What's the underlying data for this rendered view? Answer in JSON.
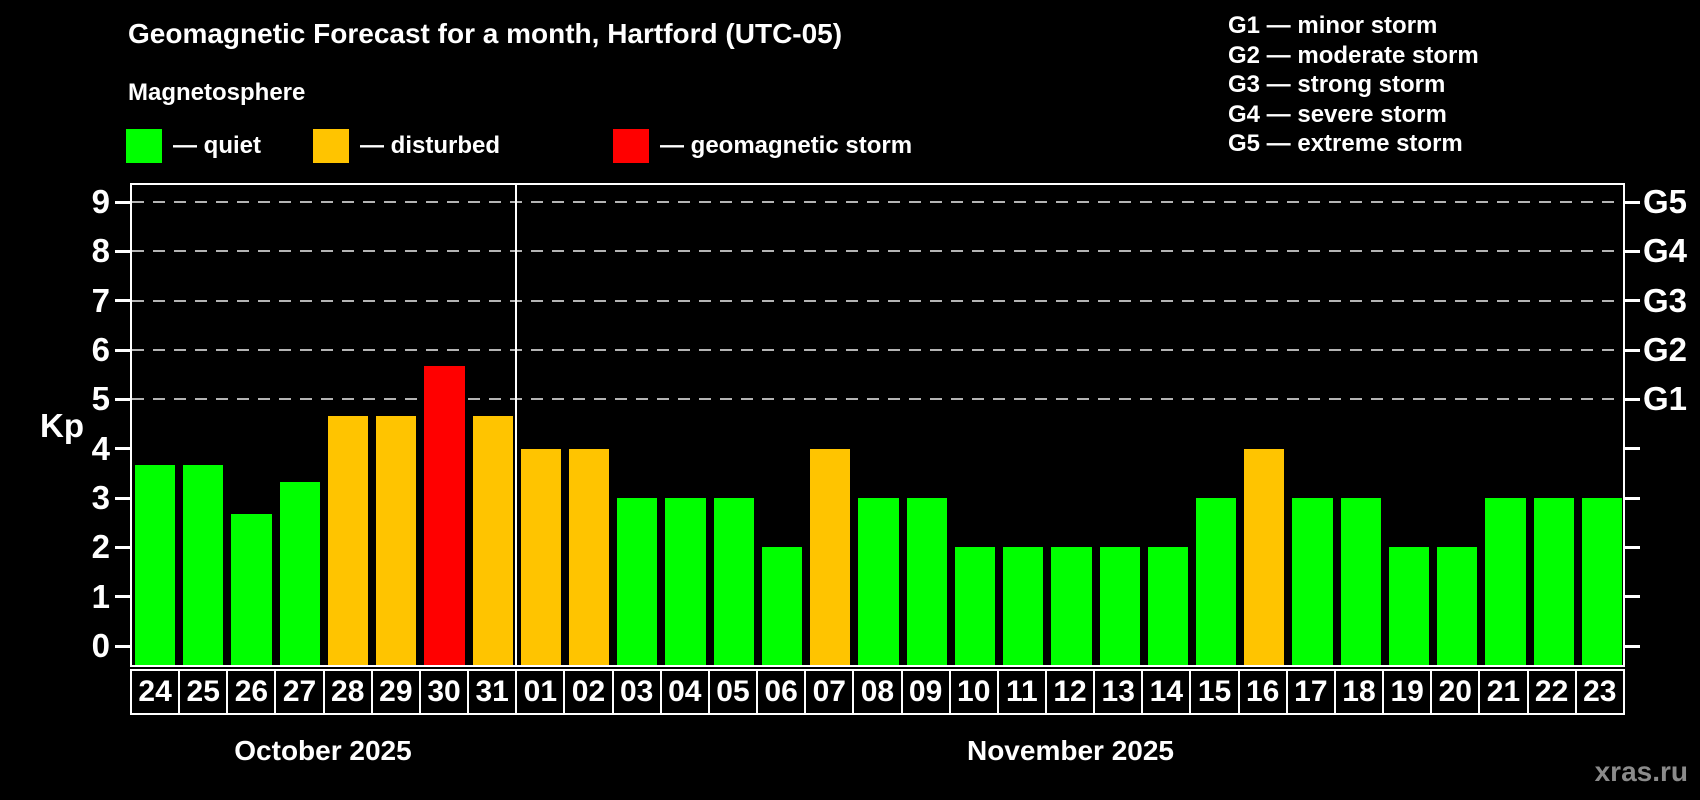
{
  "title": "Geomagnetic Forecast for a month, Hartford (UTC-05)",
  "subtitle": "Magnetosphere",
  "watermark": "xras.ru",
  "legend": {
    "items": [
      {
        "id": "quiet",
        "label": "— quiet",
        "color": "#00ff00"
      },
      {
        "id": "disturbed",
        "label": "— disturbed",
        "color": "#ffc400"
      },
      {
        "id": "storm",
        "label": "— geomagnetic storm",
        "color": "#ff0000"
      }
    ]
  },
  "storm_legend": [
    "G1 — minor storm",
    "G2 — moderate storm",
    "G3 — strong storm",
    "G4 — severe storm",
    "G5 — extreme storm"
  ],
  "chart_data": {
    "type": "bar",
    "title": "Geomagnetic Forecast for a month, Hartford (UTC-05)",
    "ylabel": "Kp",
    "ylim": [
      0,
      9
    ],
    "yticks": [
      0,
      1,
      2,
      3,
      4,
      5,
      6,
      7,
      8,
      9
    ],
    "gridlines_at_kp": [
      5,
      6,
      7,
      8,
      9
    ],
    "grid": "dashed-horizontal",
    "legend_position": "top",
    "right_axis": [
      {
        "label": "G1",
        "kp": 5
      },
      {
        "label": "G2",
        "kp": 6
      },
      {
        "label": "G3",
        "kp": 7
      },
      {
        "label": "G4",
        "kp": 8
      },
      {
        "label": "G5",
        "kp": 9
      }
    ],
    "colors": {
      "quiet": "#00ff00",
      "disturbed": "#ffc400",
      "storm": "#ff0000"
    },
    "months": [
      {
        "label": "October 2025",
        "days": [
          {
            "day": "24",
            "kp": 3.67,
            "status": "quiet"
          },
          {
            "day": "25",
            "kp": 3.67,
            "status": "quiet"
          },
          {
            "day": "26",
            "kp": 2.67,
            "status": "quiet"
          },
          {
            "day": "27",
            "kp": 3.33,
            "status": "quiet"
          },
          {
            "day": "28",
            "kp": 4.67,
            "status": "disturbed"
          },
          {
            "day": "29",
            "kp": 4.67,
            "status": "disturbed"
          },
          {
            "day": "30",
            "kp": 5.67,
            "status": "storm"
          },
          {
            "day": "31",
            "kp": 4.67,
            "status": "disturbed"
          }
        ]
      },
      {
        "label": "November 2025",
        "days": [
          {
            "day": "01",
            "kp": 4,
            "status": "disturbed"
          },
          {
            "day": "02",
            "kp": 4,
            "status": "disturbed"
          },
          {
            "day": "03",
            "kp": 3,
            "status": "quiet"
          },
          {
            "day": "04",
            "kp": 3,
            "status": "quiet"
          },
          {
            "day": "05",
            "kp": 3,
            "status": "quiet"
          },
          {
            "day": "06",
            "kp": 2,
            "status": "quiet"
          },
          {
            "day": "07",
            "kp": 4,
            "status": "disturbed"
          },
          {
            "day": "08",
            "kp": 3,
            "status": "quiet"
          },
          {
            "day": "09",
            "kp": 3,
            "status": "quiet"
          },
          {
            "day": "10",
            "kp": 2,
            "status": "quiet"
          },
          {
            "day": "11",
            "kp": 2,
            "status": "quiet"
          },
          {
            "day": "12",
            "kp": 2,
            "status": "quiet"
          },
          {
            "day": "13",
            "kp": 2,
            "status": "quiet"
          },
          {
            "day": "14",
            "kp": 2,
            "status": "quiet"
          },
          {
            "day": "15",
            "kp": 3,
            "status": "quiet"
          },
          {
            "day": "16",
            "kp": 4,
            "status": "disturbed"
          },
          {
            "day": "17",
            "kp": 3,
            "status": "quiet"
          },
          {
            "day": "18",
            "kp": 3,
            "status": "quiet"
          },
          {
            "day": "19",
            "kp": 2,
            "status": "quiet"
          },
          {
            "day": "20",
            "kp": 2,
            "status": "quiet"
          },
          {
            "day": "21",
            "kp": 3,
            "status": "quiet"
          },
          {
            "day": "22",
            "kp": 3,
            "status": "quiet"
          },
          {
            "day": "23",
            "kp": 3,
            "status": "quiet"
          }
        ]
      }
    ]
  }
}
